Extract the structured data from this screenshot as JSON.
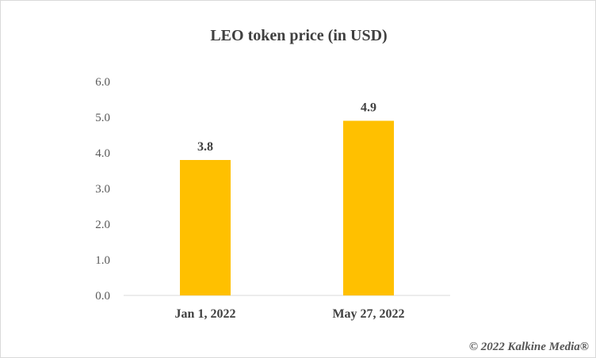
{
  "chart_data": {
    "type": "bar",
    "title": "LEO token price (in USD)",
    "categories": [
      "Jan 1, 2022",
      "May 27, 2022"
    ],
    "values": [
      3.8,
      4.9
    ],
    "data_labels": [
      "3.8",
      "4.9"
    ],
    "y_ticks": [
      "0.0",
      "1.0",
      "2.0",
      "3.0",
      "4.0",
      "5.0",
      "6.0"
    ],
    "ylim": [
      0,
      6
    ],
    "grid": false,
    "bar_color": "#FFC000",
    "axis_color": "#d9d9d9"
  },
  "footer": {
    "copyright": "© 2022 Kalkine Media®"
  }
}
